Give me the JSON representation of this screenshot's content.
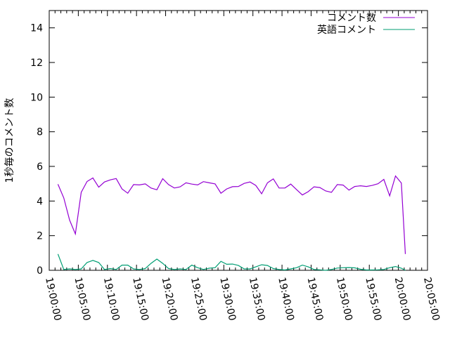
{
  "chart_data": {
    "type": "line",
    "title": "",
    "xlabel": "",
    "ylabel": "1秒毎のコメント数",
    "xlim": [
      "19:00:00",
      "20:05:00"
    ],
    "ylim": [
      0,
      15
    ],
    "x_tick_labels": [
      "19:00:00",
      "19:05:00",
      "19:10:00",
      "19:15:00",
      "19:20:00",
      "19:25:00",
      "19:30:00",
      "19:35:00",
      "19:40:00",
      "19:45:00",
      "19:50:00",
      "19:55:00",
      "20:00:00",
      "20:05:00"
    ],
    "y_tick_labels": [
      "0",
      "2",
      "4",
      "6",
      "8",
      "10",
      "12",
      "14"
    ],
    "grid": false,
    "legend_position": "top-right",
    "x": [
      "19:01:30",
      "19:02:30",
      "19:03:30",
      "19:04:30",
      "19:05:30",
      "19:06:30",
      "19:07:30",
      "19:08:30",
      "19:09:30",
      "19:10:30",
      "19:11:30",
      "19:12:30",
      "19:13:30",
      "19:14:30",
      "19:15:30",
      "19:16:30",
      "19:17:30",
      "19:18:30",
      "19:19:30",
      "19:20:30",
      "19:21:30",
      "19:22:30",
      "19:23:30",
      "19:24:30",
      "19:25:30",
      "19:26:30",
      "19:27:30",
      "19:28:30",
      "19:29:30",
      "19:30:30",
      "19:31:30",
      "19:32:30",
      "19:33:30",
      "19:34:30",
      "19:35:30",
      "19:36:30",
      "19:37:30",
      "19:38:30",
      "19:39:30",
      "19:40:30",
      "19:41:30",
      "19:42:30",
      "19:43:30",
      "19:44:30",
      "19:45:30",
      "19:46:30",
      "19:47:30",
      "19:48:30",
      "19:49:30",
      "19:50:30",
      "19:51:30",
      "19:52:30",
      "19:53:30",
      "19:54:30",
      "19:55:30",
      "19:56:30",
      "19:57:30",
      "19:58:30",
      "19:59:30",
      "20:00:30",
      "20:01:12"
    ],
    "series": [
      {
        "name": "コメント数",
        "color": "#9400d3",
        "values": [
          4.97,
          4.18,
          2.9,
          2.1,
          4.5,
          5.13,
          5.33,
          4.8,
          5.1,
          5.22,
          5.3,
          4.7,
          4.45,
          4.95,
          4.93,
          4.99,
          4.75,
          4.65,
          5.29,
          4.95,
          4.75,
          4.82,
          5.05,
          4.98,
          4.93,
          5.12,
          5.05,
          4.99,
          4.45,
          4.7,
          4.83,
          4.84,
          5.02,
          5.1,
          4.9,
          4.42,
          5.05,
          5.28,
          4.75,
          4.75,
          4.98,
          4.66,
          4.35,
          4.54,
          4.82,
          4.78,
          4.58,
          4.5,
          4.95,
          4.92,
          4.63,
          4.84,
          4.88,
          4.84,
          4.9,
          5.0,
          5.25,
          4.3,
          5.45,
          5.04,
          0.94
        ]
      },
      {
        "name": "英語コメント",
        "color": "#009e73",
        "values": [
          0.94,
          0.05,
          0.08,
          0.05,
          0.08,
          0.45,
          0.57,
          0.45,
          0.05,
          0.1,
          0.05,
          0.3,
          0.3,
          0.08,
          0.05,
          0.1,
          0.4,
          0.65,
          0.4,
          0.1,
          0.05,
          0.08,
          0.05,
          0.3,
          0.15,
          0.05,
          0.12,
          0.15,
          0.52,
          0.35,
          0.36,
          0.28,
          0.08,
          0.08,
          0.2,
          0.32,
          0.28,
          0.1,
          0.05,
          0.02,
          0.08,
          0.15,
          0.3,
          0.2,
          0.05,
          0.03,
          0.0,
          0.05,
          0.13,
          0.15,
          0.16,
          0.14,
          0.06,
          0.02,
          0.02,
          0.03,
          0.05,
          0.15,
          0.22,
          0.12,
          0.0
        ]
      }
    ]
  }
}
